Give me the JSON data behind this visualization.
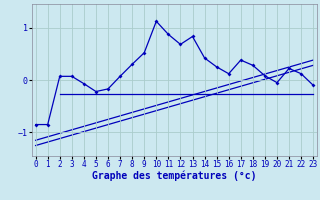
{
  "xlabel": "Graphe des températures (°c)",
  "background_color": "#cce8f0",
  "grid_color": "#aacccc",
  "line_color": "#0000bb",
  "x_ticks": [
    0,
    1,
    2,
    3,
    4,
    5,
    6,
    7,
    8,
    9,
    10,
    11,
    12,
    13,
    14,
    15,
    16,
    17,
    18,
    19,
    20,
    21,
    22,
    23
  ],
  "ylim": [
    -1.45,
    1.45
  ],
  "xlim": [
    -0.3,
    23.3
  ],
  "yticks": [
    -1,
    0,
    1
  ],
  "curve_x": [
    0,
    1,
    2,
    3,
    4,
    5,
    6,
    7,
    8,
    9,
    10,
    11,
    12,
    13,
    14,
    15,
    16,
    17,
    18,
    19,
    20,
    21,
    22,
    23
  ],
  "curve_y": [
    -0.85,
    -0.85,
    0.07,
    0.07,
    -0.07,
    -0.22,
    -0.17,
    0.07,
    0.3,
    0.52,
    1.12,
    0.87,
    0.68,
    0.83,
    0.42,
    0.25,
    0.12,
    0.38,
    0.28,
    0.08,
    -0.05,
    0.22,
    0.12,
    -0.1
  ],
  "flat_line_x": [
    2,
    23
  ],
  "flat_line_y": [
    -0.27,
    -0.27
  ],
  "diag_line1_x": [
    0,
    23
  ],
  "diag_line1_y": [
    -1.15,
    0.38
  ],
  "diag_line2_x": [
    0,
    23
  ],
  "diag_line2_y": [
    -1.25,
    0.28
  ],
  "xlabel_fontsize": 7,
  "tick_fontsize": 5.5
}
